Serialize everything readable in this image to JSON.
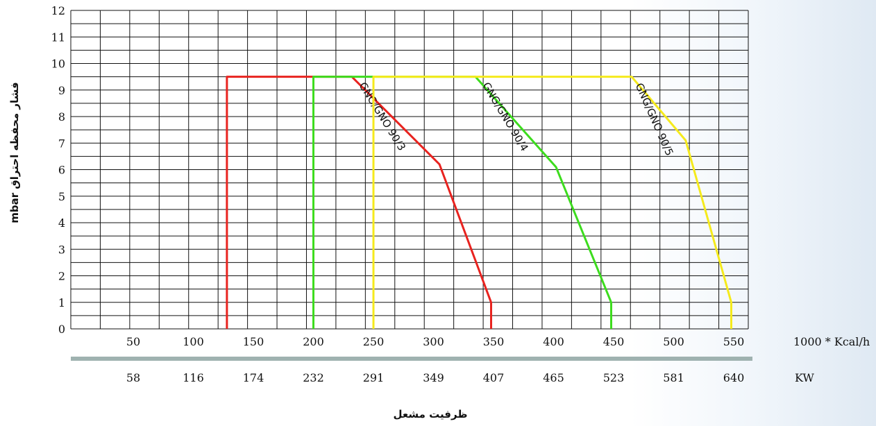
{
  "chart_data": {
    "type": "line",
    "ylabel": "فشار محفظه احتراق mbar",
    "xlabel": "ظرفیت مشعل",
    "x_unit_top": "1000 * Kcal/h",
    "x_unit_bottom": "KW",
    "ylim": [
      0,
      12
    ],
    "yticks": [
      "0",
      "1",
      "2",
      "3",
      "4",
      "5",
      "6",
      "7",
      "8",
      "9",
      "10",
      "11",
      "12"
    ],
    "xticks_kcal": [
      "50",
      "100",
      "150",
      "200",
      "250",
      "300",
      "350",
      "400",
      "450",
      "500",
      "550"
    ],
    "xticks_kw": [
      "58",
      "116",
      "174",
      "232",
      "291",
      "349",
      "407",
      "465",
      "523",
      "581",
      "640"
    ],
    "grid": true,
    "series": [
      {
        "name": "GNG/GNO 90/3",
        "color": "#e8231f",
        "points": [
          [
            128,
            0
          ],
          [
            128,
            9.5
          ],
          [
            232,
            9.5
          ],
          [
            305,
            6.2
          ],
          [
            348,
            1
          ],
          [
            348,
            0
          ]
        ]
      },
      {
        "name": "GNG/GNO 90/4",
        "color": "#3ddc1e",
        "points": [
          [
            200,
            0
          ],
          [
            200,
            9.5
          ],
          [
            335,
            9.5
          ],
          [
            402,
            6.1
          ],
          [
            448,
            1
          ],
          [
            448,
            0
          ]
        ]
      },
      {
        "name": "GNG/GNO 90/5",
        "color": "#f5ea1c",
        "points": [
          [
            250,
            0
          ],
          [
            250,
            9.5
          ],
          [
            465,
            9.5
          ],
          [
            510,
            7.1
          ],
          [
            548,
            1
          ],
          [
            548,
            0
          ]
        ]
      }
    ]
  },
  "colors": {
    "kw_bar": "#9fb2b0",
    "grid": "#111111"
  }
}
